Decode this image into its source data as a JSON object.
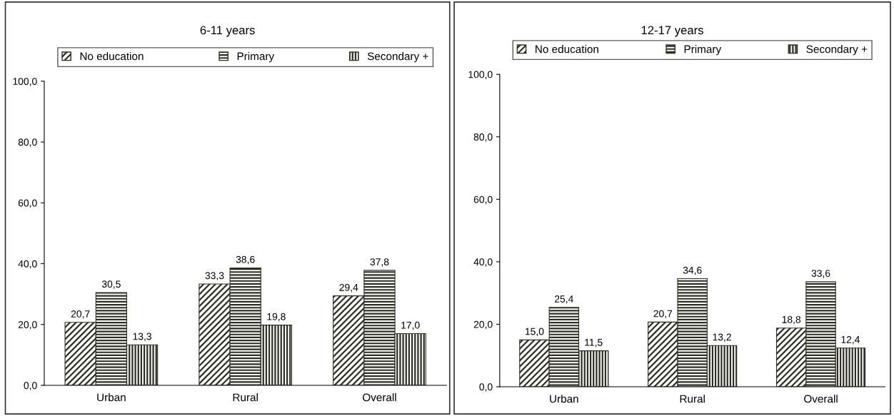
{
  "chart_data": [
    {
      "type": "bar",
      "title": "6-11 years",
      "categories": [
        "Urban",
        "Rural",
        "Overall"
      ],
      "legend": "top",
      "ylim": [
        0,
        100
      ],
      "yticks": [
        {
          "value": 0,
          "label": "0,0"
        },
        {
          "value": 20,
          "label": "20,0"
        },
        {
          "value": 40,
          "label": "40,0"
        },
        {
          "value": 60,
          "label": "60,0"
        },
        {
          "value": 80,
          "label": "80,0"
        },
        {
          "value": 100,
          "label": "100,0"
        }
      ],
      "series": [
        {
          "name": "No education",
          "color": "#2e2e22",
          "values": [
            20.7,
            33.3,
            29.4
          ],
          "value_labels": [
            "20,7",
            "33,3",
            "29,4"
          ]
        },
        {
          "name": "Primary",
          "color": "#2e2e22",
          "values": [
            30.5,
            38.6,
            37.8
          ],
          "value_labels": [
            "30,5",
            "38,6",
            "37,8"
          ]
        },
        {
          "name": "Secondary +",
          "color": "#2e2e22",
          "values": [
            13.3,
            19.8,
            17.0
          ],
          "value_labels": [
            "13,3",
            "19,8",
            "17,0"
          ]
        }
      ]
    },
    {
      "type": "bar",
      "title": "12-17 years",
      "categories": [
        "Urban",
        "Rural",
        "Overall"
      ],
      "legend": "top",
      "ylim": [
        0,
        100
      ],
      "yticks": [
        {
          "value": 0,
          "label": "0,0"
        },
        {
          "value": 20,
          "label": "20,0"
        },
        {
          "value": 40,
          "label": "40,0"
        },
        {
          "value": 60,
          "label": "60,0"
        },
        {
          "value": 80,
          "label": "80,0"
        },
        {
          "value": 100,
          "label": "100,0"
        }
      ],
      "series": [
        {
          "name": "No education",
          "color": "#2e2e22",
          "values": [
            15.0,
            20.7,
            18.8
          ],
          "value_labels": [
            "15,0",
            "20,7",
            "18,8"
          ]
        },
        {
          "name": "Primary",
          "color": "#2e2e22",
          "values": [
            25.4,
            34.6,
            33.6
          ],
          "value_labels": [
            "25,4",
            "34,6",
            "33,6"
          ]
        },
        {
          "name": "Secondary +",
          "color": "#2e2e22",
          "values": [
            11.5,
            13.2,
            12.4
          ],
          "value_labels": [
            "11,5",
            "13,2",
            "12,4"
          ]
        }
      ]
    }
  ]
}
